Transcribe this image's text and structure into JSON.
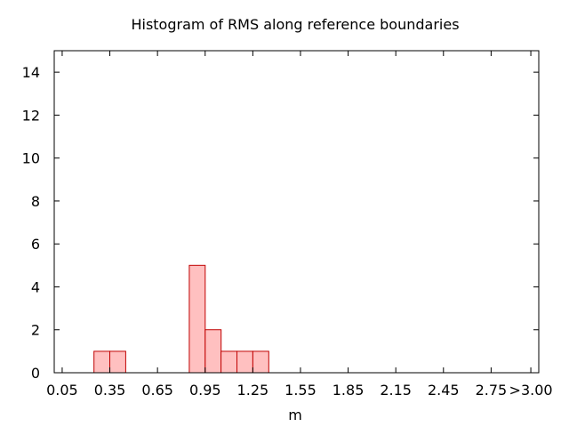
{
  "chart_data": {
    "type": "bar",
    "title": "Histogram of RMS along reference boundaries",
    "xlabel": "m",
    "ylabel": "",
    "ylim": [
      0,
      15
    ],
    "xlim": [
      0.0,
      3.05
    ],
    "grid": false,
    "legend": "none",
    "bar_fill": "#ffc0c0",
    "bar_stroke": "#c00000",
    "bin_width": 0.1,
    "y_ticks": [
      "0",
      "2",
      "4",
      "6",
      "8",
      "10",
      "12",
      "14"
    ],
    "x_ticks": [
      {
        "value": 0.05,
        "label": "0.05"
      },
      {
        "value": 0.35,
        "label": "0.35"
      },
      {
        "value": 0.65,
        "label": "0.65"
      },
      {
        "value": 0.95,
        "label": "0.95"
      },
      {
        "value": 1.25,
        "label": "1.25"
      },
      {
        "value": 1.55,
        "label": "1.55"
      },
      {
        "value": 1.85,
        "label": "1.85"
      },
      {
        "value": 2.15,
        "label": "2.15"
      },
      {
        "value": 2.45,
        "label": "2.45"
      },
      {
        "value": 2.75,
        "label": "2.75"
      },
      {
        "value": 3.0,
        "label": ">3.00"
      }
    ],
    "bins": [
      {
        "start": 0.25,
        "end": 0.35,
        "count": 1
      },
      {
        "start": 0.35,
        "end": 0.45,
        "count": 1
      },
      {
        "start": 0.85,
        "end": 0.95,
        "count": 5
      },
      {
        "start": 0.95,
        "end": 1.05,
        "count": 2
      },
      {
        "start": 1.05,
        "end": 1.15,
        "count": 1
      },
      {
        "start": 1.15,
        "end": 1.25,
        "count": 1
      },
      {
        "start": 1.25,
        "end": 1.35,
        "count": 1
      }
    ]
  }
}
